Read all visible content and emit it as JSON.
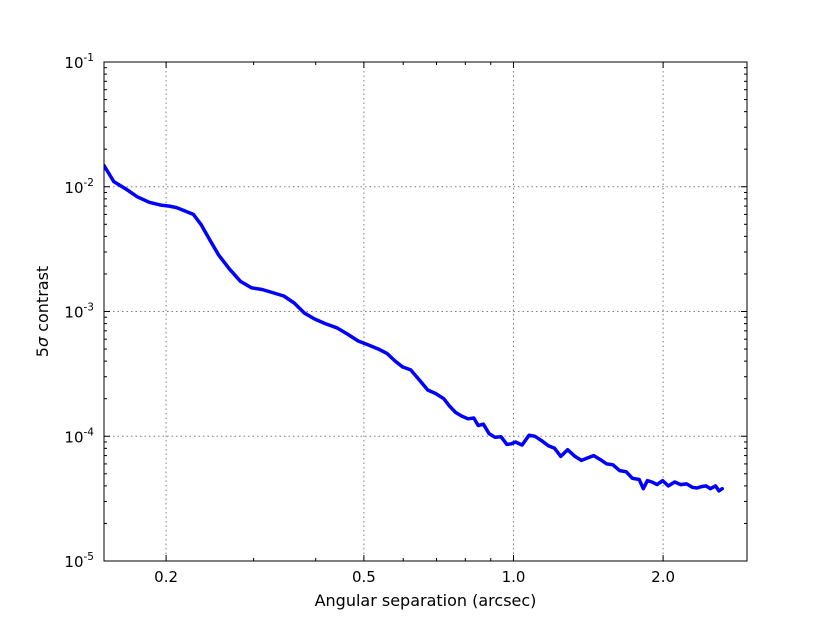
{
  "chart_data": {
    "type": "line",
    "title": "",
    "xlabel": "Angular separation (arcsec)",
    "ylabel_prefix": "5",
    "ylabel_symbol": "σ",
    "ylabel_suffix": " contrast",
    "xscale": "log",
    "yscale": "log",
    "xlim": [
      0.15,
      2.95
    ],
    "ylim": [
      1e-05,
      0.1
    ],
    "grid": true,
    "x_ticks": [
      {
        "value": 0.2,
        "label": "0.2"
      },
      {
        "value": 0.5,
        "label": "0.5"
      },
      {
        "value": 1.0,
        "label": "1.0"
      },
      {
        "value": 2.0,
        "label": "2.0"
      }
    ],
    "y_ticks": [
      {
        "value": 1e-05,
        "base": "10",
        "exp": "-5"
      },
      {
        "value": 0.0001,
        "base": "10",
        "exp": "-4"
      },
      {
        "value": 0.001,
        "base": "10",
        "exp": "-3"
      },
      {
        "value": 0.01,
        "base": "10",
        "exp": "-2"
      },
      {
        "value": 0.1,
        "base": "10",
        "exp": "-1"
      }
    ],
    "colors": {
      "line": "#0000ff",
      "grid": "#7f7f7f",
      "axes": "#000000"
    },
    "series": [
      {
        "x": [
          0.15,
          0.157,
          0.166,
          0.175,
          0.185,
          0.196,
          0.203,
          0.21,
          0.218,
          0.227,
          0.235,
          0.244,
          0.255,
          0.268,
          0.282,
          0.297,
          0.312,
          0.327,
          0.345,
          0.362,
          0.38,
          0.398,
          0.418,
          0.441,
          0.463,
          0.487,
          0.51,
          0.535,
          0.557,
          0.578,
          0.598,
          0.621,
          0.648,
          0.672,
          0.697,
          0.724,
          0.743,
          0.765,
          0.787,
          0.81,
          0.832,
          0.849,
          0.87,
          0.893,
          0.918,
          0.944,
          0.97,
          0.99,
          1.01,
          1.04,
          1.075,
          1.105,
          1.14,
          1.175,
          1.21,
          1.245,
          1.285,
          1.33,
          1.37,
          1.41,
          1.45,
          1.495,
          1.54,
          1.585,
          1.635,
          1.685,
          1.735,
          1.79,
          1.825,
          1.86,
          1.9,
          1.945,
          1.995,
          2.05,
          2.11,
          2.17,
          2.23,
          2.29,
          2.34,
          2.39,
          2.44,
          2.49,
          2.55,
          2.59,
          2.63
        ],
        "y": [
          0.0148,
          0.011,
          0.0096,
          0.0083,
          0.0075,
          0.0071,
          0.007,
          0.0068,
          0.0064,
          0.006,
          0.005,
          0.00385,
          0.00285,
          0.0022,
          0.00175,
          0.00155,
          0.0015,
          0.00142,
          0.00133,
          0.00117,
          0.00097,
          0.00087,
          0.0008,
          0.00074,
          0.00066,
          0.00058,
          0.00054,
          0.0005,
          0.00046,
          0.0004,
          0.00036,
          0.00034,
          0.00028,
          0.000235,
          0.00022,
          0.0002,
          0.000175,
          0.000155,
          0.000145,
          0.000138,
          0.00014,
          0.000122,
          0.000125,
          0.000105,
          9.8e-05,
          9.9e-05,
          8.6e-05,
          8.7e-05,
          9e-05,
          8.5e-05,
          0.000102,
          0.0001,
          9.2e-05,
          8.4e-05,
          8e-05,
          6.9e-05,
          7.8e-05,
          6.9e-05,
          6.4e-05,
          6.7e-05,
          7e-05,
          6.5e-05,
          6e-05,
          5.9e-05,
          5.3e-05,
          5.2e-05,
          4.6e-05,
          4.5e-05,
          3.8e-05,
          4.4e-05,
          4.3e-05,
          4.1e-05,
          4.4e-05,
          4e-05,
          4.3e-05,
          4.1e-05,
          4.15e-05,
          3.9e-05,
          3.85e-05,
          3.95e-05,
          4e-05,
          3.8e-05,
          4e-05,
          3.65e-05,
          3.8e-05
        ]
      }
    ]
  }
}
